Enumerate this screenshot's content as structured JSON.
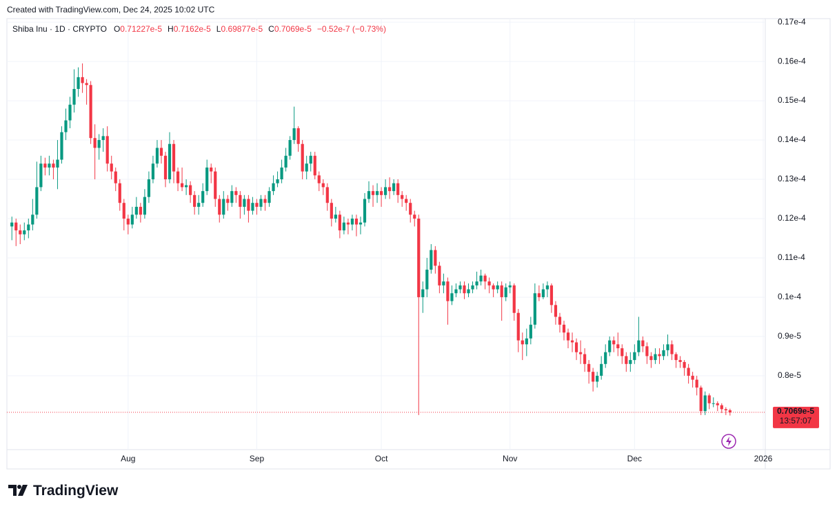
{
  "header": {
    "credit": "Created with TradingView.com, Dec 24, 2025 10:02 UTC"
  },
  "footer": {
    "brand": "TradingView"
  },
  "chart_data": {
    "type": "candlestick",
    "title": "Shiba Inu · 1D · CRYPTO",
    "legend": [
      {
        "key": "O",
        "value": "0.71227e-5"
      },
      {
        "key": "H",
        "value": "0.7162e-5"
      },
      {
        "key": "L",
        "value": "0.69877e-5"
      },
      {
        "key": "C",
        "value": "0.7069e-5"
      }
    ],
    "change": "−0.52e-7 (−0.73%)",
    "last_price_label": "0.7069e-5",
    "countdown": "13:57:07",
    "up_color": "#089981",
    "down_color": "#f23645",
    "grid": true,
    "xlim": [
      -1.2,
      181.5
    ],
    "xticks": [
      {
        "value": 28,
        "label": "Aug"
      },
      {
        "value": 59,
        "label": "Sep"
      },
      {
        "value": 89,
        "label": "Oct"
      },
      {
        "value": 120,
        "label": "Nov"
      },
      {
        "value": 150,
        "label": "Dec"
      },
      {
        "value": 181,
        "label": "2026"
      }
    ],
    "ylim": [
      6.12e-06,
      1.709e-05
    ],
    "yticks": [
      {
        "value": 8e-06,
        "label": "0.8e-5"
      },
      {
        "value": 9e-06,
        "label": "0.9e-5"
      },
      {
        "value": 1e-05,
        "label": "0.1e-4"
      },
      {
        "value": 1.1e-05,
        "label": "0.11e-4"
      },
      {
        "value": 1.2e-05,
        "label": "0.12e-4"
      },
      {
        "value": 1.3e-05,
        "label": "0.13e-4"
      },
      {
        "value": 1.4e-05,
        "label": "0.14e-4"
      },
      {
        "value": 1.5e-05,
        "label": "0.15e-4"
      },
      {
        "value": 1.6e-05,
        "label": "0.16e-4"
      },
      {
        "value": 1.7e-05,
        "label": "0.17e-4"
      }
    ],
    "ohlc": [
      [
        1.18e-05,
        1.205e-05,
        1.145e-05,
        1.19e-05
      ],
      [
        1.19e-05,
        1.2e-05,
        1.13e-05,
        1.17e-05
      ],
      [
        1.17e-05,
        1.185e-05,
        1.135e-05,
        1.16e-05
      ],
      [
        1.16e-05,
        1.19e-05,
        1.145e-05,
        1.17e-05
      ],
      [
        1.17e-05,
        1.2e-05,
        1.15e-05,
        1.185e-05
      ],
      [
        1.185e-05,
        1.25e-05,
        1.17e-05,
        1.21e-05
      ],
      [
        1.21e-05,
        1.345e-05,
        1.2e-05,
        1.28e-05
      ],
      [
        1.28e-05,
        1.36e-05,
        1.27e-05,
        1.34e-05
      ],
      [
        1.34e-05,
        1.355e-05,
        1.31e-05,
        1.33e-05
      ],
      [
        1.33e-05,
        1.36e-05,
        1.31e-05,
        1.34e-05
      ],
      [
        1.34e-05,
        1.35e-05,
        1.3e-05,
        1.33e-05
      ],
      [
        1.33e-05,
        1.4e-05,
        1.275e-05,
        1.35e-05
      ],
      [
        1.35e-05,
        1.435e-05,
        1.34e-05,
        1.42e-05
      ],
      [
        1.42e-05,
        1.48e-05,
        1.4e-05,
        1.45e-05
      ],
      [
        1.45e-05,
        1.51e-05,
        1.43e-05,
        1.49e-05
      ],
      [
        1.49e-05,
        1.58e-05,
        1.47e-05,
        1.53e-05
      ],
      [
        1.53e-05,
        1.585e-05,
        1.51e-05,
        1.56e-05
      ],
      [
        1.56e-05,
        1.595e-05,
        1.52e-05,
        1.545e-05
      ],
      [
        1.545e-05,
        1.555e-05,
        1.49e-05,
        1.54e-05
      ],
      [
        1.54e-05,
        1.55e-05,
        1.39e-05,
        1.405e-05
      ],
      [
        1.405e-05,
        1.44e-05,
        1.3e-05,
        1.38e-05
      ],
      [
        1.38e-05,
        1.415e-05,
        1.35e-05,
        1.4e-05
      ],
      [
        1.4e-05,
        1.43e-05,
        1.37e-05,
        1.41e-05
      ],
      [
        1.41e-05,
        1.435e-05,
        1.32e-05,
        1.34e-05
      ],
      [
        1.34e-05,
        1.36e-05,
        1.3e-05,
        1.32e-05
      ],
      [
        1.32e-05,
        1.33e-05,
        1.27e-05,
        1.29e-05
      ],
      [
        1.29e-05,
        1.3e-05,
        1.22e-05,
        1.24e-05
      ],
      [
        1.24e-05,
        1.25e-05,
        1.17e-05,
        1.2e-05
      ],
      [
        1.2e-05,
        1.21e-05,
        1.16e-05,
        1.185e-05
      ],
      [
        1.185e-05,
        1.23e-05,
        1.175e-05,
        1.21e-05
      ],
      [
        1.21e-05,
        1.255e-05,
        1.2e-05,
        1.23e-05
      ],
      [
        1.23e-05,
        1.24e-05,
        1.19e-05,
        1.21e-05
      ],
      [
        1.21e-05,
        1.275e-05,
        1.2e-05,
        1.255e-05
      ],
      [
        1.255e-05,
        1.32e-05,
        1.24e-05,
        1.3e-05
      ],
      [
        1.3e-05,
        1.36e-05,
        1.29e-05,
        1.34e-05
      ],
      [
        1.34e-05,
        1.4e-05,
        1.33e-05,
        1.38e-05
      ],
      [
        1.38e-05,
        1.4e-05,
        1.34e-05,
        1.36e-05
      ],
      [
        1.36e-05,
        1.37e-05,
        1.28e-05,
        1.3e-05
      ],
      [
        1.3e-05,
        1.42e-05,
        1.29e-05,
        1.39e-05
      ],
      [
        1.39e-05,
        1.4e-05,
        1.29e-05,
        1.32e-05
      ],
      [
        1.32e-05,
        1.33e-05,
        1.27e-05,
        1.29e-05
      ],
      [
        1.29e-05,
        1.33e-05,
        1.27e-05,
        1.28e-05
      ],
      [
        1.28e-05,
        1.3e-05,
        1.26e-05,
        1.285e-05
      ],
      [
        1.285e-05,
        1.295e-05,
        1.24e-05,
        1.26e-05
      ],
      [
        1.26e-05,
        1.27e-05,
        1.21e-05,
        1.23e-05
      ],
      [
        1.23e-05,
        1.26e-05,
        1.21e-05,
        1.24e-05
      ],
      [
        1.24e-05,
        1.29e-05,
        1.23e-05,
        1.27e-05
      ],
      [
        1.27e-05,
        1.35e-05,
        1.26e-05,
        1.33e-05
      ],
      [
        1.33e-05,
        1.34e-05,
        1.29e-05,
        1.32e-05
      ],
      [
        1.32e-05,
        1.33e-05,
        1.23e-05,
        1.25e-05
      ],
      [
        1.25e-05,
        1.26e-05,
        1.19e-05,
        1.21e-05
      ],
      [
        1.21e-05,
        1.27e-05,
        1.2e-05,
        1.25e-05
      ],
      [
        1.25e-05,
        1.26e-05,
        1.22e-05,
        1.24e-05
      ],
      [
        1.24e-05,
        1.285e-05,
        1.23e-05,
        1.27e-05
      ],
      [
        1.27e-05,
        1.28e-05,
        1.24e-05,
        1.26e-05
      ],
      [
        1.26e-05,
        1.27e-05,
        1.2e-05,
        1.23e-05
      ],
      [
        1.23e-05,
        1.26e-05,
        1.21e-05,
        1.25e-05
      ],
      [
        1.25e-05,
        1.26e-05,
        1.19e-05,
        1.22e-05
      ],
      [
        1.22e-05,
        1.255e-05,
        1.21e-05,
        1.24e-05
      ],
      [
        1.24e-05,
        1.25e-05,
        1.21e-05,
        1.23e-05
      ],
      [
        1.23e-05,
        1.26e-05,
        1.22e-05,
        1.25e-05
      ],
      [
        1.25e-05,
        1.26e-05,
        1.22e-05,
        1.24e-05
      ],
      [
        1.24e-05,
        1.28e-05,
        1.23e-05,
        1.27e-05
      ],
      [
        1.27e-05,
        1.31e-05,
        1.26e-05,
        1.29e-05
      ],
      [
        1.29e-05,
        1.32e-05,
        1.28e-05,
        1.3e-05
      ],
      [
        1.3e-05,
        1.35e-05,
        1.29e-05,
        1.33e-05
      ],
      [
        1.33e-05,
        1.38e-05,
        1.32e-05,
        1.36e-05
      ],
      [
        1.36e-05,
        1.41e-05,
        1.35e-05,
        1.4e-05
      ],
      [
        1.4e-05,
        1.485e-05,
        1.39e-05,
        1.43e-05
      ],
      [
        1.43e-05,
        1.435e-05,
        1.37e-05,
        1.39e-05
      ],
      [
        1.39e-05,
        1.4e-05,
        1.3e-05,
        1.32e-05
      ],
      [
        1.32e-05,
        1.36e-05,
        1.3e-05,
        1.34e-05
      ],
      [
        1.34e-05,
        1.37e-05,
        1.32e-05,
        1.36e-05
      ],
      [
        1.36e-05,
        1.37e-05,
        1.3e-05,
        1.31e-05
      ],
      [
        1.31e-05,
        1.32e-05,
        1.27e-05,
        1.29e-05
      ],
      [
        1.29e-05,
        1.3e-05,
        1.26e-05,
        1.28e-05
      ],
      [
        1.28e-05,
        1.29e-05,
        1.22e-05,
        1.24e-05
      ],
      [
        1.24e-05,
        1.25e-05,
        1.18e-05,
        1.2e-05
      ],
      [
        1.2e-05,
        1.23e-05,
        1.19e-05,
        1.21e-05
      ],
      [
        1.21e-05,
        1.22e-05,
        1.15e-05,
        1.17e-05
      ],
      [
        1.17e-05,
        1.205e-05,
        1.16e-05,
        1.19e-05
      ],
      [
        1.19e-05,
        1.2e-05,
        1.16e-05,
        1.185e-05
      ],
      [
        1.185e-05,
        1.21e-05,
        1.17e-05,
        1.2e-05
      ],
      [
        1.2e-05,
        1.21e-05,
        1.155e-05,
        1.185e-05
      ],
      [
        1.185e-05,
        1.205e-05,
        1.16e-05,
        1.19e-05
      ],
      [
        1.19e-05,
        1.265e-05,
        1.18e-05,
        1.25e-05
      ],
      [
        1.25e-05,
        1.295e-05,
        1.24e-05,
        1.27e-05
      ],
      [
        1.27e-05,
        1.285e-05,
        1.23e-05,
        1.26e-05
      ],
      [
        1.26e-05,
        1.29e-05,
        1.24e-05,
        1.27e-05
      ],
      [
        1.27e-05,
        1.28e-05,
        1.23e-05,
        1.26e-05
      ],
      [
        1.26e-05,
        1.3e-05,
        1.25e-05,
        1.28e-05
      ],
      [
        1.28e-05,
        1.305e-05,
        1.25e-05,
        1.27e-05
      ],
      [
        1.27e-05,
        1.3e-05,
        1.26e-05,
        1.29e-05
      ],
      [
        1.29e-05,
        1.3e-05,
        1.24e-05,
        1.26e-05
      ],
      [
        1.26e-05,
        1.27e-05,
        1.23e-05,
        1.25e-05
      ],
      [
        1.25e-05,
        1.26e-05,
        1.22e-05,
        1.24e-05
      ],
      [
        1.24e-05,
        1.25e-05,
        1.19e-05,
        1.21e-05
      ],
      [
        1.21e-05,
        1.22e-05,
        1.18e-05,
        1.2e-05
      ],
      [
        1.2e-05,
        1.21e-05,
        7e-06,
        1e-05
      ],
      [
        1e-05,
        1.04e-05,
        9.6e-06,
        1.02e-05
      ],
      [
        1.02e-05,
        1.1e-05,
        1e-05,
        1.07e-05
      ],
      [
        1.07e-05,
        1.135e-05,
        1.06e-05,
        1.12e-05
      ],
      [
        1.12e-05,
        1.13e-05,
        1.06e-05,
        1.08e-05
      ],
      [
        1.08e-05,
        1.09e-05,
        1.01e-05,
        1.03e-05
      ],
      [
        1.03e-05,
        1.06e-05,
        1.01e-05,
        1.04e-05
      ],
      [
        1.04e-05,
        1.05e-05,
        9.3e-06,
        9.9e-06
      ],
      [
        9.9e-06,
        1.03e-05,
        9.8e-06,
        1.01e-05
      ],
      [
        1.01e-05,
        1.035e-05,
        1e-05,
        1.02e-05
      ],
      [
        1.02e-05,
        1.04e-05,
        1.01e-05,
        1.03e-05
      ],
      [
        1.03e-05,
        1.04e-05,
        9.95e-06,
        1.01e-05
      ],
      [
        1.01e-05,
        1.035e-05,
        1e-05,
        1.02e-05
      ],
      [
        1.02e-05,
        1.04e-05,
        1.01e-05,
        1.03e-05
      ],
      [
        1.03e-05,
        1.065e-05,
        1.02e-05,
        1.04e-05
      ],
      [
        1.04e-05,
        1.07e-05,
        1.03e-05,
        1.055e-05
      ],
      [
        1.055e-05,
        1.06e-05,
        1.02e-05,
        1.04e-05
      ],
      [
        1.04e-05,
        1.05e-05,
        1.01e-05,
        1.03e-05
      ],
      [
        1.03e-05,
        1.035e-05,
        1e-05,
        1.02e-05
      ],
      [
        1.02e-05,
        1.04e-05,
        1.01e-05,
        1.03e-05
      ],
      [
        1.03e-05,
        1.04e-05,
        9.4e-06,
        1e-05
      ],
      [
        1e-05,
        1.035e-05,
        9.9e-06,
        1.025e-05
      ],
      [
        1.025e-05,
        1.04e-05,
        1.01e-05,
        1.03e-05
      ],
      [
        1.03e-05,
        1.035e-05,
        9.4e-06,
        9.6e-06
      ],
      [
        9.6e-06,
        9.7e-06,
        8.6e-06,
        8.9e-06
      ],
      [
        8.9e-06,
        9.1e-06,
        8.4e-06,
        8.8e-06
      ],
      [
        8.8e-06,
        9.2e-06,
        8.5e-06,
        8.95e-06
      ],
      [
        8.95e-06,
        9.5e-06,
        8.8e-06,
        9.3e-06
      ],
      [
        9.3e-06,
        1.035e-05,
        9.2e-06,
        1.01e-05
      ],
      [
        1.01e-05,
        1.03e-05,
        9.9e-06,
        1e-05
      ],
      [
        1e-05,
        1.035e-05,
        9.95e-06,
        1.02e-05
      ],
      [
        1.02e-05,
        1.04e-05,
        1e-05,
        1.03e-05
      ],
      [
        1.03e-05,
        1.035e-05,
        9.6e-06,
        9.8e-06
      ],
      [
        9.8e-06,
        9.9e-06,
        9.3e-06,
        9.5e-06
      ],
      [
        9.5e-06,
        9.6e-06,
        9.1e-06,
        9.3e-06
      ],
      [
        9.3e-06,
        9.4e-06,
        8.9e-06,
        9.1e-06
      ],
      [
        9.1e-06,
        9.2e-06,
        8.7e-06,
        8.9e-06
      ],
      [
        8.9e-06,
        9.1e-06,
        8.6e-06,
        8.85e-06
      ],
      [
        8.85e-06,
        8.95e-06,
        8.4e-06,
        8.6e-06
      ],
      [
        8.6e-06,
        8.9e-06,
        8.3e-06,
        8.55e-06
      ],
      [
        8.55e-06,
        8.7e-06,
        8.1e-06,
        8.3e-06
      ],
      [
        8.3e-06,
        8.4e-06,
        7.8e-06,
        8.1e-06
      ],
      [
        8.1e-06,
        8.2e-06,
        7.6e-06,
        7.85e-06
      ],
      [
        7.85e-06,
        8.1e-06,
        7.7e-06,
        8e-06
      ],
      [
        8e-06,
        8.5e-06,
        7.9e-06,
        8.3e-06
      ],
      [
        8.3e-06,
        8.8e-06,
        8.2e-06,
        8.6e-06
      ],
      [
        8.6e-06,
        9e-06,
        8.5e-06,
        8.9e-06
      ],
      [
        8.9e-06,
        9e-06,
        8.6e-06,
        8.8e-06
      ],
      [
        8.8e-06,
        9.1e-06,
        8.5e-06,
        8.7e-06
      ],
      [
        8.7e-06,
        8.8e-06,
        8.3e-06,
        8.5e-06
      ],
      [
        8.5e-06,
        8.6e-06,
        8.1e-06,
        8.3e-06
      ],
      [
        8.3e-06,
        8.6e-06,
        8.1e-06,
        8.4e-06
      ],
      [
        8.4e-06,
        8.8e-06,
        8.3e-06,
        8.6e-06
      ],
      [
        8.6e-06,
        9.5e-06,
        8.5e-06,
        8.9e-06
      ],
      [
        8.9e-06,
        9e-06,
        8.6e-06,
        8.75e-06
      ],
      [
        8.75e-06,
        8.85e-06,
        8.3e-06,
        8.5e-06
      ],
      [
        8.5e-06,
        8.6e-06,
        8.2e-06,
        8.4e-06
      ],
      [
        8.4e-06,
        8.7e-06,
        8.3e-06,
        8.55e-06
      ],
      [
        8.55e-06,
        8.7e-06,
        8.3e-06,
        8.5e-06
      ],
      [
        8.5e-06,
        8.8e-06,
        8.4e-06,
        8.65e-06
      ],
      [
        8.65e-06,
        9.05e-06,
        8.5e-06,
        8.8e-06
      ],
      [
        8.8e-06,
        8.9e-06,
        8.4e-06,
        8.55e-06
      ],
      [
        8.55e-06,
        8.6e-06,
        8.2e-06,
        8.4e-06
      ],
      [
        8.4e-06,
        8.5e-06,
        8.2e-06,
        8.35e-06
      ],
      [
        8.35e-06,
        8.4e-06,
        8e-06,
        8.2e-06
      ],
      [
        8.2e-06,
        8.3e-06,
        7.8e-06,
        8e-06
      ],
      [
        8e-06,
        8.1e-06,
        7.7e-06,
        7.9e-06
      ],
      [
        7.9e-06,
        8e-06,
        7.5e-06,
        7.7e-06
      ],
      [
        7.7e-06,
        7.75e-06,
        7e-06,
        7.1e-06
      ],
      [
        7.1e-06,
        7.6e-06,
        7e-06,
        7.5e-06
      ],
      [
        7.5e-06,
        7.55e-06,
        7.15e-06,
        7.3e-06
      ],
      [
        7.3e-06,
        7.45e-06,
        7.2e-06,
        7.3e-06
      ],
      [
        7.3e-06,
        7.35e-06,
        7.1e-06,
        7.25e-06
      ],
      [
        7.25e-06,
        7.3e-06,
        7.05e-06,
        7.15e-06
      ],
      [
        7.15e-06,
        7.2e-06,
        7e-06,
        7.12e-06
      ],
      [
        7.1227e-06,
        7.162e-06,
        6.9877e-06,
        7.069e-06
      ]
    ]
  }
}
